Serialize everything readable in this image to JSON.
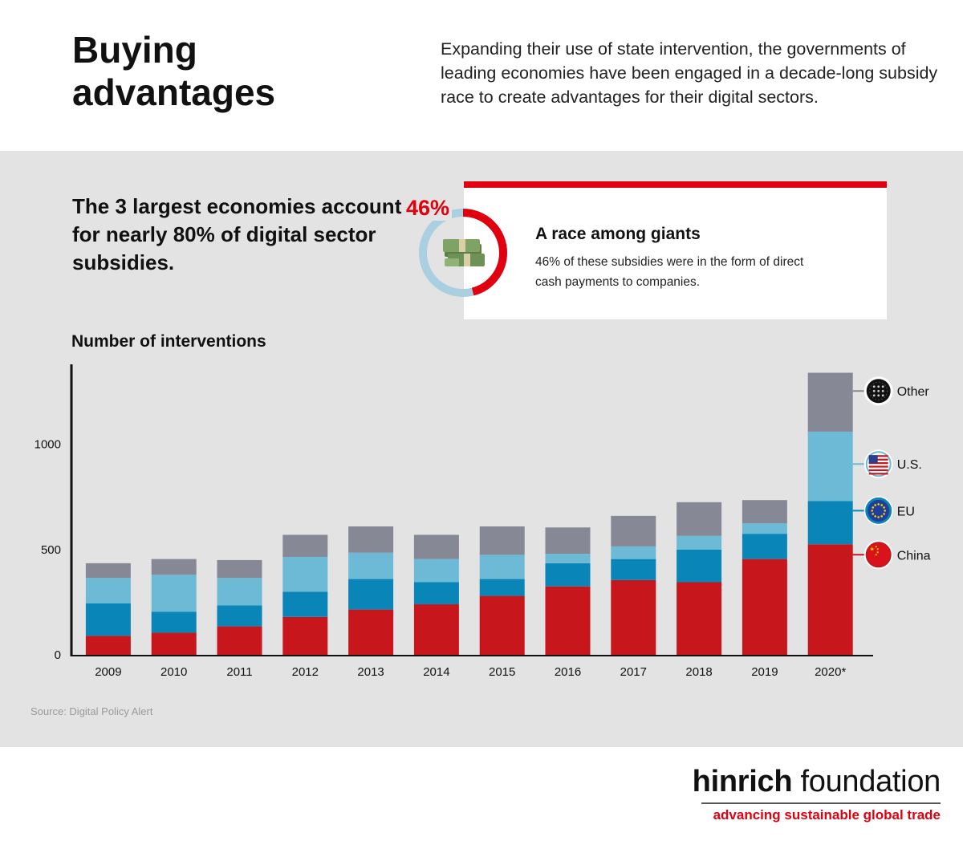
{
  "header": {
    "title": "Buying advantages",
    "intro": "Expanding their use of state intervention, the governments of leading economies have been engaged in a decade-long subsidy race to create advantages for their digital sectors."
  },
  "key_stat": "The 3 largest economies account for nearly 80% of digital sector subsidies.",
  "callout": {
    "percent_label": "46%",
    "percent_value": 46,
    "title": "A race among giants",
    "text": "46% of these subsidies were in the form of direct cash payments to companies.",
    "icon": "cash-stack-icon"
  },
  "chart_title": "Number of interventions",
  "source": "Source: Digital Policy Alert",
  "colors": {
    "China": "#c8161d",
    "EU": "#0a85b8",
    "US": "#6dbad6",
    "Other": "#878896",
    "accent_red": "#e1000f",
    "donut_track": "#a9cfe0"
  },
  "legend": [
    {
      "label": "Other",
      "icon": "globe-dots-icon"
    },
    {
      "label": "U.S.",
      "icon": "us-flag-icon"
    },
    {
      "label": "EU",
      "icon": "eu-flag-icon"
    },
    {
      "label": "China",
      "icon": "china-flag-icon"
    }
  ],
  "chart_data": {
    "type": "bar",
    "stacked": true,
    "categories": [
      "2009",
      "2010",
      "2011",
      "2012",
      "2013",
      "2014",
      "2015",
      "2016",
      "2017",
      "2018",
      "2019",
      "2020*"
    ],
    "series": [
      {
        "name": "China",
        "values": [
          90,
          105,
          135,
          180,
          215,
          240,
          280,
          325,
          355,
          345,
          455,
          525
        ]
      },
      {
        "name": "EU",
        "values": [
          155,
          100,
          100,
          120,
          145,
          105,
          80,
          110,
          100,
          155,
          120,
          205
        ]
      },
      {
        "name": "U.S.",
        "values": [
          120,
          175,
          130,
          165,
          125,
          110,
          115,
          45,
          60,
          65,
          50,
          330
        ]
      },
      {
        "name": "Other",
        "values": [
          70,
          75,
          85,
          105,
          125,
          115,
          135,
          125,
          145,
          160,
          110,
          280
        ]
      }
    ],
    "y_ticks": [
      0,
      500,
      1000
    ],
    "ylim": [
      0,
      1380
    ],
    "xlabel": "",
    "ylabel": "",
    "grid": false,
    "legend_position": "right"
  },
  "footer": {
    "brand_bold": "hinrich",
    "brand_rest": " foundation",
    "tagline": "advancing sustainable global trade"
  }
}
